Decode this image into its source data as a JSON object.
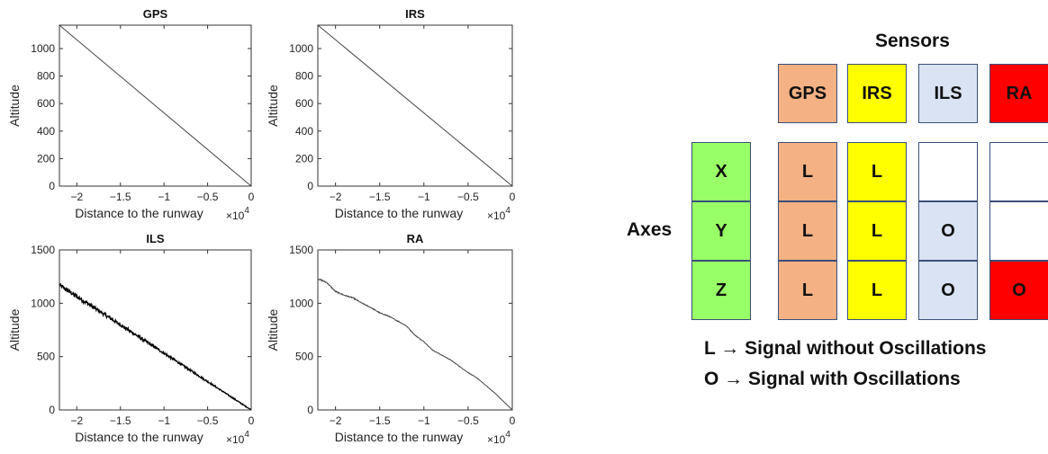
{
  "chart_data": [
    {
      "type": "line",
      "title": "GPS",
      "xlabel": "Distance to the runway",
      "ylabel": "Altitude",
      "x_multiplier": "×10",
      "x_exponent": "4",
      "xlim": [
        -2.2,
        0
      ],
      "ylim": [
        0,
        1170
      ],
      "xticks": [
        -2,
        -1.5,
        -1,
        -0.5,
        0
      ],
      "xtick_labels": [
        "−2",
        "−1.5",
        "−1",
        "−0.5",
        "0"
      ],
      "yticks": [
        0,
        200,
        400,
        600,
        800,
        1000
      ],
      "ytick_labels": [
        "0",
        "200",
        "400",
        "600",
        "800",
        "1000"
      ],
      "series": [
        {
          "x": [
            -2.2,
            0
          ],
          "y": [
            1170,
            0
          ],
          "noise": 0
        }
      ]
    },
    {
      "type": "line",
      "title": "IRS",
      "xlabel": "Distance to the runway",
      "ylabel": "Altitude",
      "x_multiplier": "×10",
      "x_exponent": "4",
      "xlim": [
        -2.2,
        0
      ],
      "ylim": [
        0,
        1170
      ],
      "xticks": [
        -2,
        -1.5,
        -1,
        -0.5,
        0
      ],
      "xtick_labels": [
        "−2",
        "−1.5",
        "−1",
        "−0.5",
        "0"
      ],
      "yticks": [
        0,
        200,
        400,
        600,
        800,
        1000
      ],
      "ytick_labels": [
        "0",
        "200",
        "400",
        "600",
        "800",
        "1000"
      ],
      "series": [
        {
          "x": [
            -2.2,
            0
          ],
          "y": [
            1170,
            0
          ],
          "noise": 0
        }
      ]
    },
    {
      "type": "line",
      "title": "ILS",
      "xlabel": "Distance to the runway",
      "ylabel": "Altitude",
      "x_multiplier": "×10",
      "x_exponent": "4",
      "xlim": [
        -2.2,
        0
      ],
      "ylim": [
        0,
        1500
      ],
      "xticks": [
        -2,
        -1.5,
        -1,
        -0.5,
        0
      ],
      "xtick_labels": [
        "−2",
        "−1.5",
        "−1",
        "−0.5",
        "0"
      ],
      "yticks": [
        0,
        500,
        1000,
        1500
      ],
      "ytick_labels": [
        "0",
        "500",
        "1000",
        "1500"
      ],
      "series": [
        {
          "x": [
            -2.2,
            0
          ],
          "y": [
            1170,
            0
          ],
          "noise": 22
        }
      ]
    },
    {
      "type": "line",
      "title": "RA",
      "xlabel": "Distance to the runway",
      "ylabel": "Altitude",
      "x_multiplier": "×10",
      "x_exponent": "4",
      "xlim": [
        -2.2,
        0
      ],
      "ylim": [
        0,
        1500
      ],
      "xticks": [
        -2,
        -1.5,
        -1,
        -0.5,
        0
      ],
      "xtick_labels": [
        "−2",
        "−1.5",
        "−1",
        "−0.5",
        "0"
      ],
      "yticks": [
        0,
        500,
        1000,
        1500
      ],
      "ytick_labels": [
        "0",
        "500",
        "1000",
        "1500"
      ],
      "series": [
        {
          "x": [
            -2.2,
            -2.1,
            -2.0,
            -1.9,
            -1.8,
            -1.7,
            -1.6,
            -1.5,
            -1.4,
            -1.3,
            -1.2,
            -1.1,
            -1.0,
            -0.9,
            -0.8,
            -0.7,
            -0.6,
            -0.5,
            -0.4,
            -0.3,
            -0.2,
            -0.1,
            0
          ],
          "y": [
            1230,
            1195,
            1110,
            1075,
            1050,
            1000,
            960,
            910,
            880,
            835,
            790,
            700,
            640,
            560,
            515,
            470,
            410,
            350,
            300,
            230,
            160,
            80,
            0
          ],
          "noise": 6
        }
      ]
    }
  ],
  "sensor_table": {
    "header": "Sensors",
    "axes_label": "Axes",
    "sensors": [
      {
        "name": "GPS",
        "color": "#F4B183"
      },
      {
        "name": "IRS",
        "color": "#FFFF00"
      },
      {
        "name": "ILS",
        "color": "#DAE3F3"
      },
      {
        "name": "RA",
        "color": "#FF0000"
      }
    ],
    "axes": [
      {
        "name": "X",
        "color": "#99FF66"
      },
      {
        "name": "Y",
        "color": "#99FF66"
      },
      {
        "name": "Z",
        "color": "#99FF66"
      }
    ],
    "cells": [
      [
        "L",
        "L",
        "",
        ""
      ],
      [
        "L",
        "L",
        "O",
        ""
      ],
      [
        "L",
        "L",
        "O",
        "O"
      ]
    ],
    "legend": [
      "L → Signal without Oscillations",
      "O → Signal with Oscillations"
    ]
  }
}
